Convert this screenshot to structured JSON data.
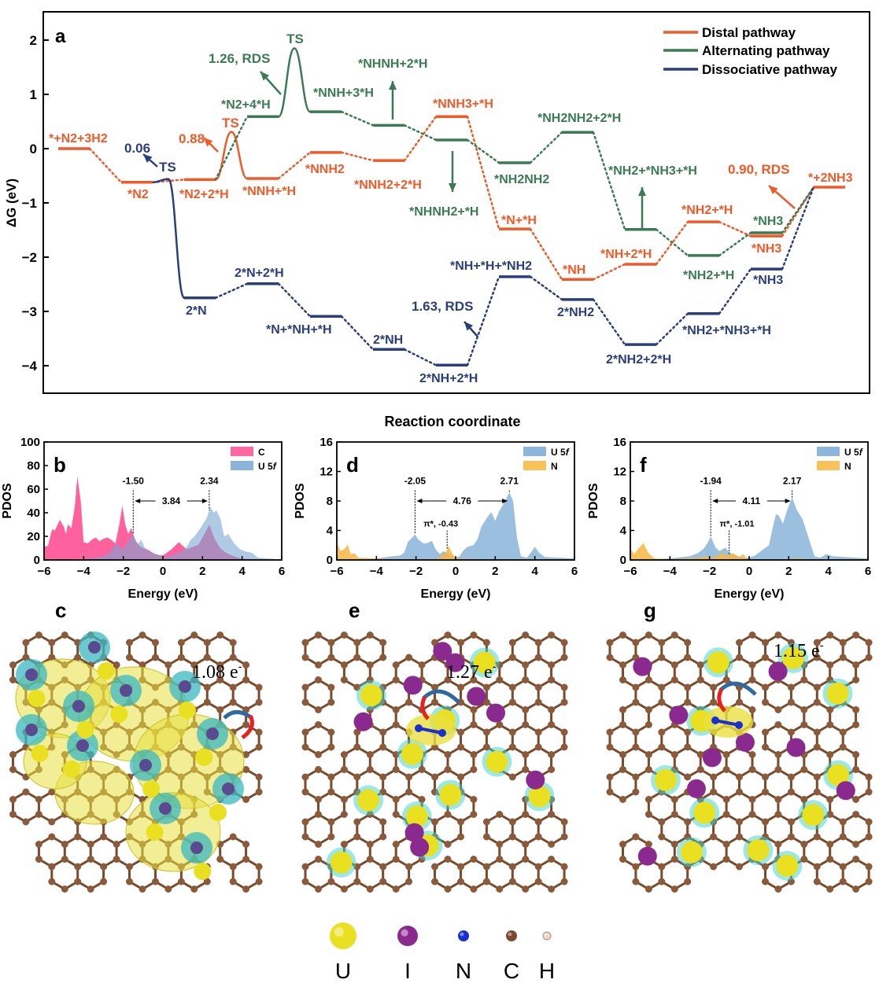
{
  "chart_data": [
    {
      "panel": "a",
      "type": "line",
      "subtype": "free-energy-profile",
      "ylabel": "ΔG (eV)",
      "xlabel": "Reaction coordinate",
      "ylim": [
        -4.5,
        2.5
      ],
      "yticks": [
        -4,
        -3,
        -2,
        -1,
        0,
        1,
        2
      ],
      "grid": false,
      "legend_placement": "top-right",
      "series": [
        {
          "name": "Distal pathway",
          "color": "#f05a28",
          "levels": [
            {
              "step": 0,
              "label": "*+N2+3H2",
              "value": 0.0
            },
            {
              "step": 1,
              "label": "*N2",
              "value": -0.62
            },
            {
              "step": 2,
              "label": "*N2+2*H",
              "value": -0.57
            },
            {
              "step": 3,
              "label": "*NNH+*H",
              "value": -0.55
            },
            {
              "step": 4,
              "label": "*NNH2",
              "value": -0.07
            },
            {
              "step": 5,
              "label": "*NNH2+2*H",
              "value": -0.22
            },
            {
              "step": 6,
              "label": "*NNH3+*H",
              "value": 0.59
            },
            {
              "step": 7,
              "label": "*N+*H",
              "value": -1.48
            },
            {
              "step": 8,
              "label": "*NH",
              "value": -2.41
            },
            {
              "step": 9,
              "label": "*NH+2*H",
              "value": -2.13
            },
            {
              "step": 10,
              "label": "*NH2+*H",
              "value": -1.35
            },
            {
              "step": 11,
              "label": "*NH3",
              "value": -1.61
            },
            {
              "step": 12,
              "label": "*+2NH3",
              "value": -0.71
            }
          ],
          "ts": {
            "between": [
              2,
              3
            ],
            "value": 0.31,
            "label": "TS",
            "barrier": "0.88"
          },
          "annotations": [
            "0.90, RDS"
          ]
        },
        {
          "name": "Alternating pathway",
          "color": "#3b7a52",
          "start_from": {
            "step": 2,
            "value": -0.57
          },
          "end_at": {
            "step": 12,
            "value": -0.71
          },
          "levels": [
            {
              "step": 3,
              "label": "*N2+4*H",
              "value": 0.59
            },
            {
              "step": 4,
              "label": "*NNH+3*H",
              "value": 0.68
            },
            {
              "step": 5,
              "label": "*NHNH+2*H",
              "value": 0.43
            },
            {
              "step": 6,
              "label": "*NHNH2+*H",
              "value": 0.16
            },
            {
              "step": 7,
              "label": "*NH2NH2",
              "value": -0.26
            },
            {
              "step": 8,
              "label": "*NH2NH2+2*H",
              "value": 0.3
            },
            {
              "step": 9,
              "label": "*NH2+*NH3+*H",
              "value": -1.49
            },
            {
              "step": 10,
              "label": "*NH2+*H",
              "value": -1.97
            },
            {
              "step": 11,
              "label": "*NH3",
              "value": -1.55
            }
          ],
          "ts": {
            "between": [
              3,
              4
            ],
            "value": 1.85,
            "label": "TS",
            "barrier": "1.26, RDS"
          }
        },
        {
          "name": "Dissociative pathway",
          "color": "#2b3e7c",
          "start_from": {
            "step": 1,
            "value": -0.62
          },
          "end_at": {
            "step": 12,
            "value": -0.71
          },
          "levels": [
            {
              "step": 2,
              "label": "2*N",
              "value": -2.75
            },
            {
              "step": 3,
              "label": "2*N+2*H",
              "value": -2.49
            },
            {
              "step": 4,
              "label": "*N+*NH+*H",
              "value": -3.09
            },
            {
              "step": 5,
              "label": "2*NH",
              "value": -3.7
            },
            {
              "step": 6,
              "label": "2*NH+2*H",
              "value": -3.99
            },
            {
              "step": 7,
              "label": "*NH+*H+*NH2",
              "value": -2.36
            },
            {
              "step": 8,
              "label": "2*NH2",
              "value": -2.78
            },
            {
              "step": 9,
              "label": "2*NH2+2*H",
              "value": -3.61
            },
            {
              "step": 10,
              "label": "*NH2+*NH3+*H",
              "value": -3.04
            },
            {
              "step": 11,
              "label": "*NH3",
              "value": -2.22
            }
          ],
          "ts": {
            "between": [
              1,
              2
            ],
            "value": -0.56,
            "label": "TS",
            "barrier": "0.06"
          },
          "annotations": [
            "1.63, RDS"
          ]
        }
      ]
    },
    {
      "panel": "b",
      "type": "area",
      "xlabel": "Energy (eV)",
      "ylabel": "PDOS",
      "xlim": [
        -6,
        6
      ],
      "ylim": [
        0,
        100
      ],
      "xticks": [
        -6,
        -4,
        -2,
        0,
        2,
        4,
        6
      ],
      "yticks": [
        0,
        20,
        40,
        60,
        80,
        100
      ],
      "legend_placement": "top-right",
      "series": [
        {
          "name": "C",
          "color": "#ff4f93",
          "x": [
            -6,
            -5.8,
            -5.6,
            -5.45,
            -5.2,
            -5.0,
            -4.9,
            -4.8,
            -4.62,
            -4.45,
            -4.32,
            -4.15,
            -4.0,
            -3.8,
            -3.6,
            -3.4,
            -3.2,
            -3.0,
            -2.8,
            -2.6,
            -2.4,
            -2.2,
            -2.05,
            -1.9,
            -1.75,
            -1.6,
            -1.4,
            -1.2,
            -1.0,
            -0.8,
            -0.6,
            -0.4,
            -0.2,
            0,
            0.2,
            0.5,
            0.8,
            1.0,
            1.2,
            1.5,
            1.8,
            2.1,
            2.35,
            2.6,
            2.9,
            3.2,
            3.6,
            4.0,
            5.0,
            6.0
          ],
          "y": [
            11,
            12,
            26,
            25,
            34,
            28,
            22,
            30,
            27,
            45,
            71,
            50,
            15,
            14,
            17,
            19,
            16,
            18,
            19,
            17,
            14,
            30,
            46,
            30,
            22,
            27,
            17,
            12,
            10,
            9,
            7,
            5,
            4,
            4,
            6,
            10,
            15,
            12,
            9,
            11,
            13,
            22,
            30,
            18,
            10,
            6,
            3,
            1,
            0.5,
            0
          ]
        },
        {
          "name": "U 5f",
          "color": "#7aa6d2",
          "x": [
            -6,
            -4,
            -3,
            -2.6,
            -2.4,
            -2.2,
            -2.0,
            -1.8,
            -1.5,
            -1.3,
            -1.1,
            -0.9,
            -0.6,
            -0.3,
            0,
            0.3,
            0.6,
            0.9,
            1.2,
            1.4,
            1.6,
            1.9,
            2.2,
            2.4,
            2.55,
            2.7,
            2.9,
            3.1,
            3.3,
            3.6,
            3.9,
            4.2,
            4.5,
            4.8,
            5.5,
            6
          ],
          "y": [
            0,
            0.5,
            3,
            8,
            14,
            12,
            9,
            15,
            22,
            13,
            17,
            10,
            6,
            5,
            3,
            3,
            5,
            7,
            11,
            17,
            20,
            27,
            35,
            45,
            40,
            42,
            35,
            20,
            22,
            14,
            9,
            7,
            6,
            2,
            1,
            0.5
          ]
        }
      ],
      "annotations": {
        "peaks": [
          "-1.50",
          "2.34"
        ],
        "peak_x": [
          -1.5,
          2.34
        ],
        "gap": "3.84"
      }
    },
    {
      "panel": "d",
      "type": "area",
      "xlabel": "Energy (eV)",
      "ylabel": "PDOS",
      "xlim": [
        -6,
        6
      ],
      "ylim": [
        0,
        16
      ],
      "xticks": [
        -6,
        -4,
        -2,
        0,
        2,
        4,
        6
      ],
      "yticks": [
        0,
        4,
        8,
        12,
        16
      ],
      "legend_placement": "top-right",
      "series": [
        {
          "name": "U 5f",
          "color": "#7aa9d4",
          "x": [
            -6,
            -4,
            -3.2,
            -2.8,
            -2.6,
            -2.4,
            -2.2,
            -2.05,
            -1.9,
            -1.6,
            -1.4,
            -1.2,
            -1.0,
            -0.8,
            -0.6,
            -0.3,
            0,
            0.2,
            0.4,
            0.6,
            0.9,
            1.1,
            1.3,
            1.6,
            1.8,
            2.0,
            2.2,
            2.5,
            2.71,
            2.9,
            3.1,
            3.3,
            3.6,
            3.8,
            4.0,
            4.2,
            4.5,
            6
          ],
          "y": [
            0,
            0.2,
            0.5,
            0.6,
            1,
            2.5,
            3,
            3.5,
            2.8,
            2.2,
            2.3,
            2.6,
            1.4,
            0.8,
            1.2,
            0.8,
            0.3,
            0.5,
            1.3,
            1.8,
            2.0,
            2.8,
            4.5,
            5.8,
            6.5,
            5.3,
            6.6,
            8.0,
            9.2,
            8.0,
            3,
            0.5,
            0.3,
            1,
            1.8,
            1,
            0.4,
            0.2
          ]
        },
        {
          "name": "N",
          "color": "#f8b640",
          "x": [
            -6,
            -5.8,
            -5.6,
            -5.45,
            -5.3,
            -5.1,
            -4.9,
            -4,
            -3,
            -1,
            -0.7,
            -0.5,
            -0.35,
            -0.2,
            0,
            1,
            6
          ],
          "y": [
            2.3,
            1.2,
            1.5,
            2.1,
            0.8,
            0.9,
            0.3,
            0.2,
            0.1,
            0.1,
            0.6,
            1.0,
            1.9,
            1.0,
            0.2,
            0.1,
            0
          ]
        }
      ],
      "annotations": {
        "peaks": [
          "-2.05",
          "2.71"
        ],
        "peak_x": [
          -2.05,
          2.71
        ],
        "gap": "4.76",
        "pi_star": "π*, -0.43",
        "pi_star_x": -0.43
      }
    },
    {
      "panel": "f",
      "type": "area",
      "xlabel": "Energy (eV)",
      "ylabel": "PDOS",
      "xlim": [
        -6,
        6
      ],
      "ylim": [
        0,
        16
      ],
      "xticks": [
        -6,
        -4,
        -2,
        0,
        2,
        4,
        6
      ],
      "yticks": [
        0,
        4,
        8,
        12,
        16
      ],
      "legend_placement": "top-right",
      "series": [
        {
          "name": "U 5f",
          "color": "#7aa9d4",
          "x": [
            -6,
            -4,
            -3,
            -2.6,
            -2.3,
            -2.1,
            -1.94,
            -1.7,
            -1.5,
            -1.2,
            -1.0,
            -0.6,
            -0.2,
            0,
            0.3,
            0.6,
            0.8,
            1.0,
            1.2,
            1.35,
            1.5,
            1.7,
            1.9,
            2.17,
            2.4,
            2.7,
            3.0,
            3.3,
            3.6,
            3.9,
            4.2,
            6
          ],
          "y": [
            0,
            0.2,
            0.5,
            0.9,
            1.5,
            2.3,
            3.2,
            1.7,
            1.2,
            1.7,
            1.0,
            0.5,
            0.3,
            0.3,
            0.6,
            1.2,
            1.6,
            2.0,
            4.5,
            6.2,
            6.0,
            4.9,
            6.6,
            8.5,
            6.8,
            5.5,
            3,
            0.5,
            0.3,
            0.8,
            0.5,
            0.2
          ]
        },
        {
          "name": "N",
          "color": "#f8b640",
          "x": [
            -6,
            -5.8,
            -5.6,
            -5.35,
            -5.1,
            -4.8,
            -4,
            -2.5,
            -2.2,
            -1.8,
            -1.4,
            -1.1,
            -0.8,
            -0.5,
            -0.3,
            -0.1,
            1,
            2.5,
            3,
            6
          ],
          "y": [
            1.5,
            0.8,
            1.5,
            2.3,
            1.0,
            0.2,
            0.1,
            0.3,
            0.5,
            0.3,
            0.9,
            0.6,
            0.9,
            0.4,
            0.8,
            0.1,
            0,
            0.2,
            0,
            0
          ]
        }
      ],
      "annotations": {
        "peaks": [
          "-1.94",
          "2.17"
        ],
        "peak_x": [
          -1.94,
          2.17
        ],
        "gap": "4.11",
        "pi_star": "π*, -1.01",
        "pi_star_x": -1.01
      }
    }
  ],
  "structures": [
    {
      "panel": "c",
      "charge": "1.08",
      "unit": "e",
      "sign": "-"
    },
    {
      "panel": "e",
      "charge": "1.27",
      "unit": "e",
      "sign": "-"
    },
    {
      "panel": "g",
      "charge": "1.15",
      "unit": "e",
      "sign": "-"
    }
  ],
  "atom_legend": [
    {
      "symbol": "U",
      "color": "#e8e020"
    },
    {
      "symbol": "I",
      "color": "#8a2a8e"
    },
    {
      "symbol": "N",
      "color": "#1a2fd0"
    },
    {
      "symbol": "C",
      "color": "#7a4a2a"
    },
    {
      "symbol": "H",
      "color": "#f0d8d0"
    }
  ]
}
